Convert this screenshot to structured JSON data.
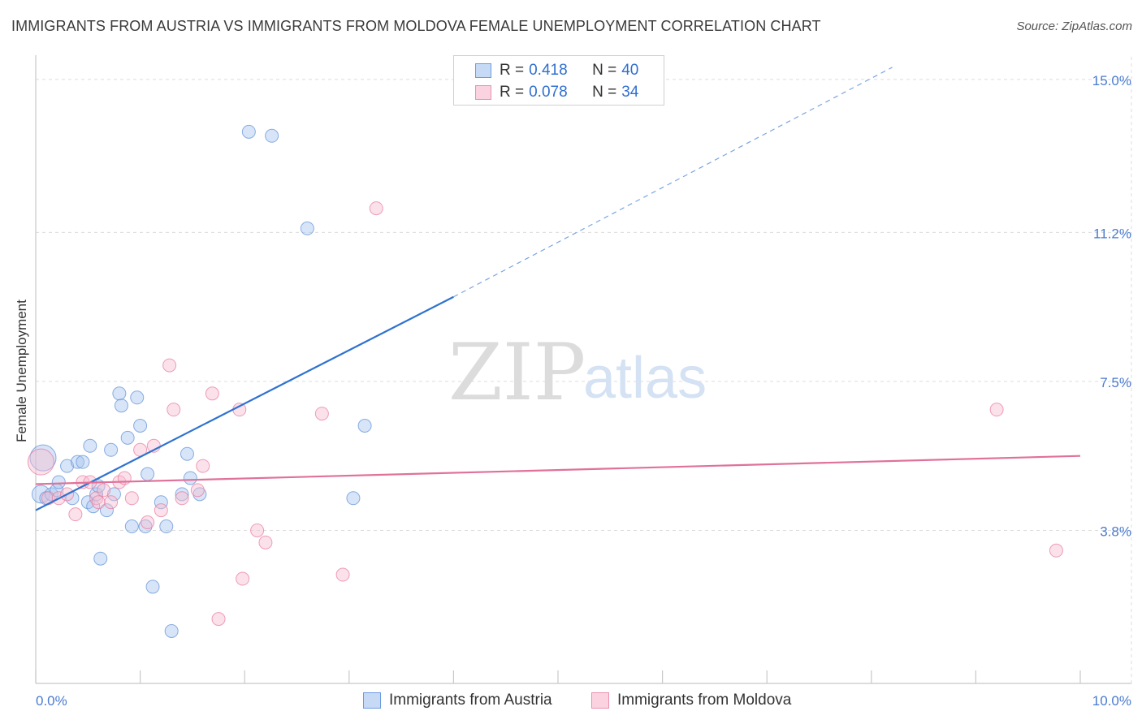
{
  "header": {
    "title": "IMMIGRANTS FROM AUSTRIA VS IMMIGRANTS FROM MOLDOVA FEMALE UNEMPLOYMENT CORRELATION CHART",
    "source": "Source: ZipAtlas.com"
  },
  "watermark": {
    "zip": "ZIP",
    "atlas": "atlas"
  },
  "legend": {
    "r_label": "R =",
    "n_label": "N =",
    "series": [
      {
        "name": "Immigrants from Austria",
        "r": "0.418",
        "n": "40",
        "color": "#a9c6ef",
        "stroke": "#5b8fd6"
      },
      {
        "name": "Immigrants from Moldova",
        "r": "0.078",
        "n": "34",
        "color": "#f7bdd0",
        "stroke": "#e8779d"
      }
    ]
  },
  "chart_data": {
    "type": "scatter",
    "title": "IMMIGRANTS FROM AUSTRIA VS IMMIGRANTS FROM MOLDOVA FEMALE UNEMPLOYMENT CORRELATION CHART",
    "xlabel": "",
    "ylabel": "Female Unemployment",
    "xlim": [
      0,
      10
    ],
    "ylim": [
      0,
      15.4
    ],
    "x_tick_labels": [
      "0.0%",
      "10.0%"
    ],
    "y_ticks": [
      3.8,
      7.5,
      11.2,
      15.0
    ],
    "y_tick_labels": [
      "3.8%",
      "7.5%",
      "11.2%",
      "15.0%"
    ],
    "grid": true,
    "series": [
      {
        "name": "Immigrants from Austria",
        "color": "#5b8fd6",
        "fill": "#a9c6ef",
        "trend": {
          "x0": 0.0,
          "y0": 4.3,
          "x1": 4.0,
          "y1": 9.6,
          "dash_to_x": 8.2,
          "dash_to_y": 15.3
        },
        "points": [
          [
            0.05,
            4.7,
            2
          ],
          [
            0.1,
            4.6,
            1
          ],
          [
            0.15,
            4.7,
            1
          ],
          [
            0.2,
            4.8,
            1
          ],
          [
            0.22,
            5.0,
            1
          ],
          [
            0.3,
            5.4,
            1
          ],
          [
            0.35,
            4.6,
            1
          ],
          [
            0.4,
            5.5,
            1
          ],
          [
            0.45,
            5.5,
            1
          ],
          [
            0.5,
            4.5,
            1
          ],
          [
            0.55,
            4.4,
            1
          ],
          [
            0.52,
            5.9,
            1
          ],
          [
            0.58,
            4.7,
            1
          ],
          [
            0.6,
            4.9,
            1
          ],
          [
            0.62,
            3.1,
            1
          ],
          [
            0.68,
            4.3,
            1
          ],
          [
            0.72,
            5.8,
            1
          ],
          [
            0.75,
            4.7,
            1
          ],
          [
            0.8,
            7.2,
            1
          ],
          [
            0.82,
            6.9,
            1
          ],
          [
            0.88,
            6.1,
            1
          ],
          [
            0.92,
            3.9,
            1
          ],
          [
            0.97,
            7.1,
            1
          ],
          [
            1.0,
            6.4,
            1
          ],
          [
            1.05,
            3.9,
            1
          ],
          [
            1.07,
            5.2,
            1
          ],
          [
            1.12,
            2.4,
            1
          ],
          [
            1.2,
            4.5,
            1
          ],
          [
            1.25,
            3.9,
            1
          ],
          [
            1.3,
            1.3,
            1
          ],
          [
            1.4,
            4.7,
            1
          ],
          [
            1.45,
            5.7,
            1
          ],
          [
            1.48,
            5.1,
            1
          ],
          [
            1.57,
            4.7,
            1
          ],
          [
            2.04,
            13.7,
            1
          ],
          [
            2.26,
            13.6,
            1
          ],
          [
            2.6,
            11.3,
            1
          ],
          [
            3.04,
            4.6,
            1
          ],
          [
            3.15,
            6.4,
            1
          ],
          [
            0.07,
            5.6,
            3
          ]
        ]
      },
      {
        "name": "Immigrants from Moldova",
        "color": "#e8779d",
        "fill": "#f7bdd0",
        "trend": {
          "x0": 0.0,
          "y0": 4.95,
          "x1": 10.0,
          "y1": 5.65
        },
        "points": [
          [
            0.05,
            5.5,
            3
          ],
          [
            0.12,
            4.6,
            1
          ],
          [
            0.22,
            4.6,
            1
          ],
          [
            0.3,
            4.7,
            1
          ],
          [
            0.38,
            4.2,
            1
          ],
          [
            0.45,
            5.0,
            1
          ],
          [
            0.52,
            5.0,
            1
          ],
          [
            0.58,
            4.6,
            1
          ],
          [
            0.65,
            4.8,
            1
          ],
          [
            0.72,
            4.5,
            1
          ],
          [
            0.8,
            5.0,
            1
          ],
          [
            0.85,
            5.1,
            1
          ],
          [
            0.92,
            4.6,
            1
          ],
          [
            1.0,
            5.8,
            1
          ],
          [
            1.07,
            4.0,
            1
          ],
          [
            1.13,
            5.9,
            1
          ],
          [
            1.2,
            4.3,
            1
          ],
          [
            1.28,
            7.9,
            1
          ],
          [
            1.32,
            6.8,
            1
          ],
          [
            1.4,
            4.6,
            1
          ],
          [
            1.55,
            4.8,
            1
          ],
          [
            1.6,
            5.4,
            1
          ],
          [
            1.69,
            7.2,
            1
          ],
          [
            1.75,
            1.6,
            1
          ],
          [
            1.95,
            6.8,
            1
          ],
          [
            1.98,
            2.6,
            1
          ],
          [
            2.12,
            3.8,
            1
          ],
          [
            2.2,
            3.5,
            1
          ],
          [
            2.74,
            6.7,
            1
          ],
          [
            2.94,
            2.7,
            1
          ],
          [
            3.26,
            11.8,
            1
          ],
          [
            9.2,
            6.8,
            1
          ],
          [
            9.77,
            3.3,
            1
          ],
          [
            0.6,
            4.5,
            1
          ]
        ]
      }
    ]
  }
}
